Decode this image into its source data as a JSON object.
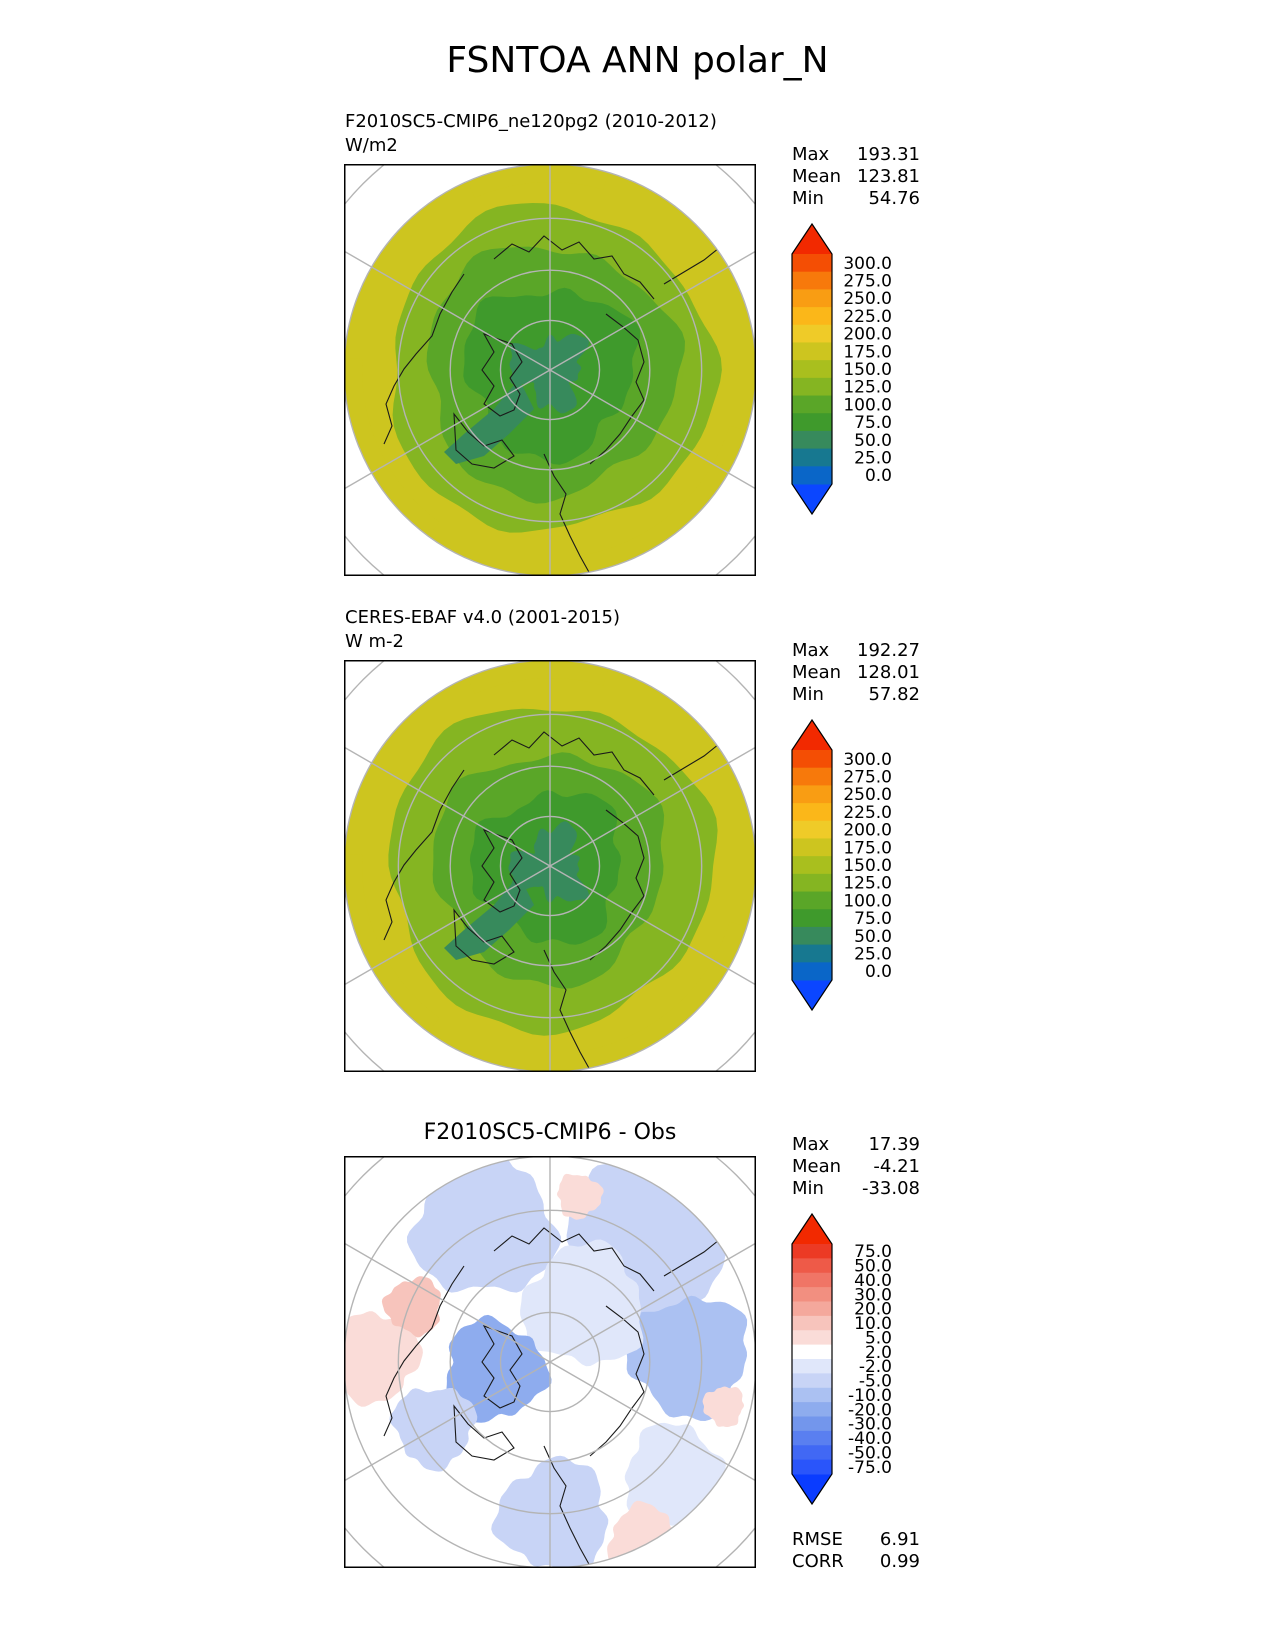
{
  "title": "FSNTOA ANN polar_N",
  "panels": [
    {
      "id": "test",
      "title_lines": [
        "F2010SC5-CMIP6_ne120pg2 (2010-2012)",
        "W/m2"
      ],
      "stats": [
        [
          "Max",
          "193.31"
        ],
        [
          "Mean",
          "123.81"
        ],
        [
          "Min",
          "54.76"
        ]
      ],
      "colorbar": {
        "levels": [
          "0.0",
          "25.0",
          "50.0",
          "75.0",
          "100.0",
          "125.0",
          "150.0",
          "175.0",
          "200.0",
          "225.0",
          "250.0",
          "275.0",
          "300.0"
        ],
        "colors": [
          "#0b46ff",
          "#0a66c8",
          "#177890",
          "#378a5c",
          "#3f9a2c",
          "#5aa628",
          "#85b522",
          "#a9bf1e",
          "#cdc51f",
          "#efcb28",
          "#fbb719",
          "#f99d13",
          "#f7790b",
          "#f44e04",
          "#f22900"
        ]
      }
    },
    {
      "id": "reference",
      "title_lines": [
        "CERES-EBAF v4.0 (2001-2015)",
        "W m-2"
      ],
      "stats": [
        [
          "Max",
          "192.27"
        ],
        [
          "Mean",
          "128.01"
        ],
        [
          "Min",
          "57.82"
        ]
      ],
      "colorbar": {
        "levels": [
          "0.0",
          "25.0",
          "50.0",
          "75.0",
          "100.0",
          "125.0",
          "150.0",
          "175.0",
          "200.0",
          "225.0",
          "250.0",
          "275.0",
          "300.0"
        ],
        "colors": [
          "#0b46ff",
          "#0a66c8",
          "#177890",
          "#378a5c",
          "#3f9a2c",
          "#5aa628",
          "#85b522",
          "#a9bf1e",
          "#cdc51f",
          "#efcb28",
          "#fbb719",
          "#f99d13",
          "#f7790b",
          "#f44e04",
          "#f22900"
        ]
      }
    },
    {
      "id": "difference",
      "title_lines": [
        "F2010SC5-CMIP6 - Obs"
      ],
      "stats": [
        [
          "Max",
          "17.39"
        ],
        [
          "Mean",
          "-4.21"
        ],
        [
          "Min",
          "-33.08"
        ]
      ],
      "extra_stats": [
        [
          "RMSE",
          "6.91"
        ],
        [
          "CORR",
          "0.99"
        ]
      ],
      "colorbar": {
        "levels": [
          "-75.0",
          "-50.0",
          "-40.0",
          "-30.0",
          "-20.0",
          "-10.0",
          "-5.0",
          "-2.0",
          "2.0",
          "5.0",
          "10.0",
          "20.0",
          "30.0",
          "40.0",
          "50.0",
          "75.0"
        ],
        "colors": [
          "#0a3cff",
          "#2a55fa",
          "#4168f4",
          "#5a7ff0",
          "#7396ec",
          "#8eacee",
          "#abc1f2",
          "#c8d4f6",
          "#e0e7fa",
          "#ffffff",
          "#fadcd8",
          "#f7c4bc",
          "#f4a89c",
          "#f28f80",
          "#f07566",
          "#ee5a48",
          "#ec3a24",
          "#f22900"
        ]
      }
    }
  ],
  "chart_data": [
    {
      "type": "heatmap",
      "subtype": "north-polar-stereographic-contour",
      "title": "F2010SC5-CMIP6_ne120pg2 (2010-2012)",
      "units": "W/m2",
      "max": 193.31,
      "mean": 123.81,
      "min": 54.76,
      "levels": [
        0,
        25,
        50,
        75,
        100,
        125,
        150,
        175,
        200,
        225,
        250,
        275,
        300
      ],
      "zones": [
        {
          "lat_range": [
            83,
            90
          ],
          "value_range": [
            50,
            75
          ]
        },
        {
          "lat_range": [
            73,
            83
          ],
          "value_range": [
            75,
            100
          ]
        },
        {
          "lat_range": [
            65,
            73
          ],
          "value_range": [
            100,
            125
          ]
        },
        {
          "lat_range": [
            58,
            65
          ],
          "value_range": [
            125,
            150
          ]
        },
        {
          "lat_range": [
            50,
            58
          ],
          "value_range": [
            150,
            200
          ]
        }
      ]
    },
    {
      "type": "heatmap",
      "subtype": "north-polar-stereographic-contour",
      "title": "CERES-EBAF v4.0 (2001-2015)",
      "units": "W m-2",
      "max": 192.27,
      "mean": 128.01,
      "min": 57.82,
      "levels": [
        0,
        25,
        50,
        75,
        100,
        125,
        150,
        175,
        200,
        225,
        250,
        275,
        300
      ],
      "zones": [
        {
          "lat_range": [
            83,
            90
          ],
          "value_range": [
            50,
            75
          ]
        },
        {
          "lat_range": [
            75,
            83
          ],
          "value_range": [
            75,
            100
          ]
        },
        {
          "lat_range": [
            67,
            75
          ],
          "value_range": [
            100,
            125
          ]
        },
        {
          "lat_range": [
            58,
            67
          ],
          "value_range": [
            125,
            150
          ]
        },
        {
          "lat_range": [
            50,
            58
          ],
          "value_range": [
            150,
            200
          ]
        }
      ]
    },
    {
      "type": "heatmap",
      "subtype": "north-polar-stereographic-contour",
      "title": "F2010SC5-CMIP6 - Obs",
      "max": 17.39,
      "mean": -4.21,
      "min": -33.08,
      "rmse": 6.91,
      "corr": 0.99,
      "levels": [
        -75,
        -50,
        -40,
        -30,
        -20,
        -10,
        -5,
        -2,
        2,
        5,
        10,
        20,
        30,
        40,
        50,
        75
      ]
    }
  ]
}
